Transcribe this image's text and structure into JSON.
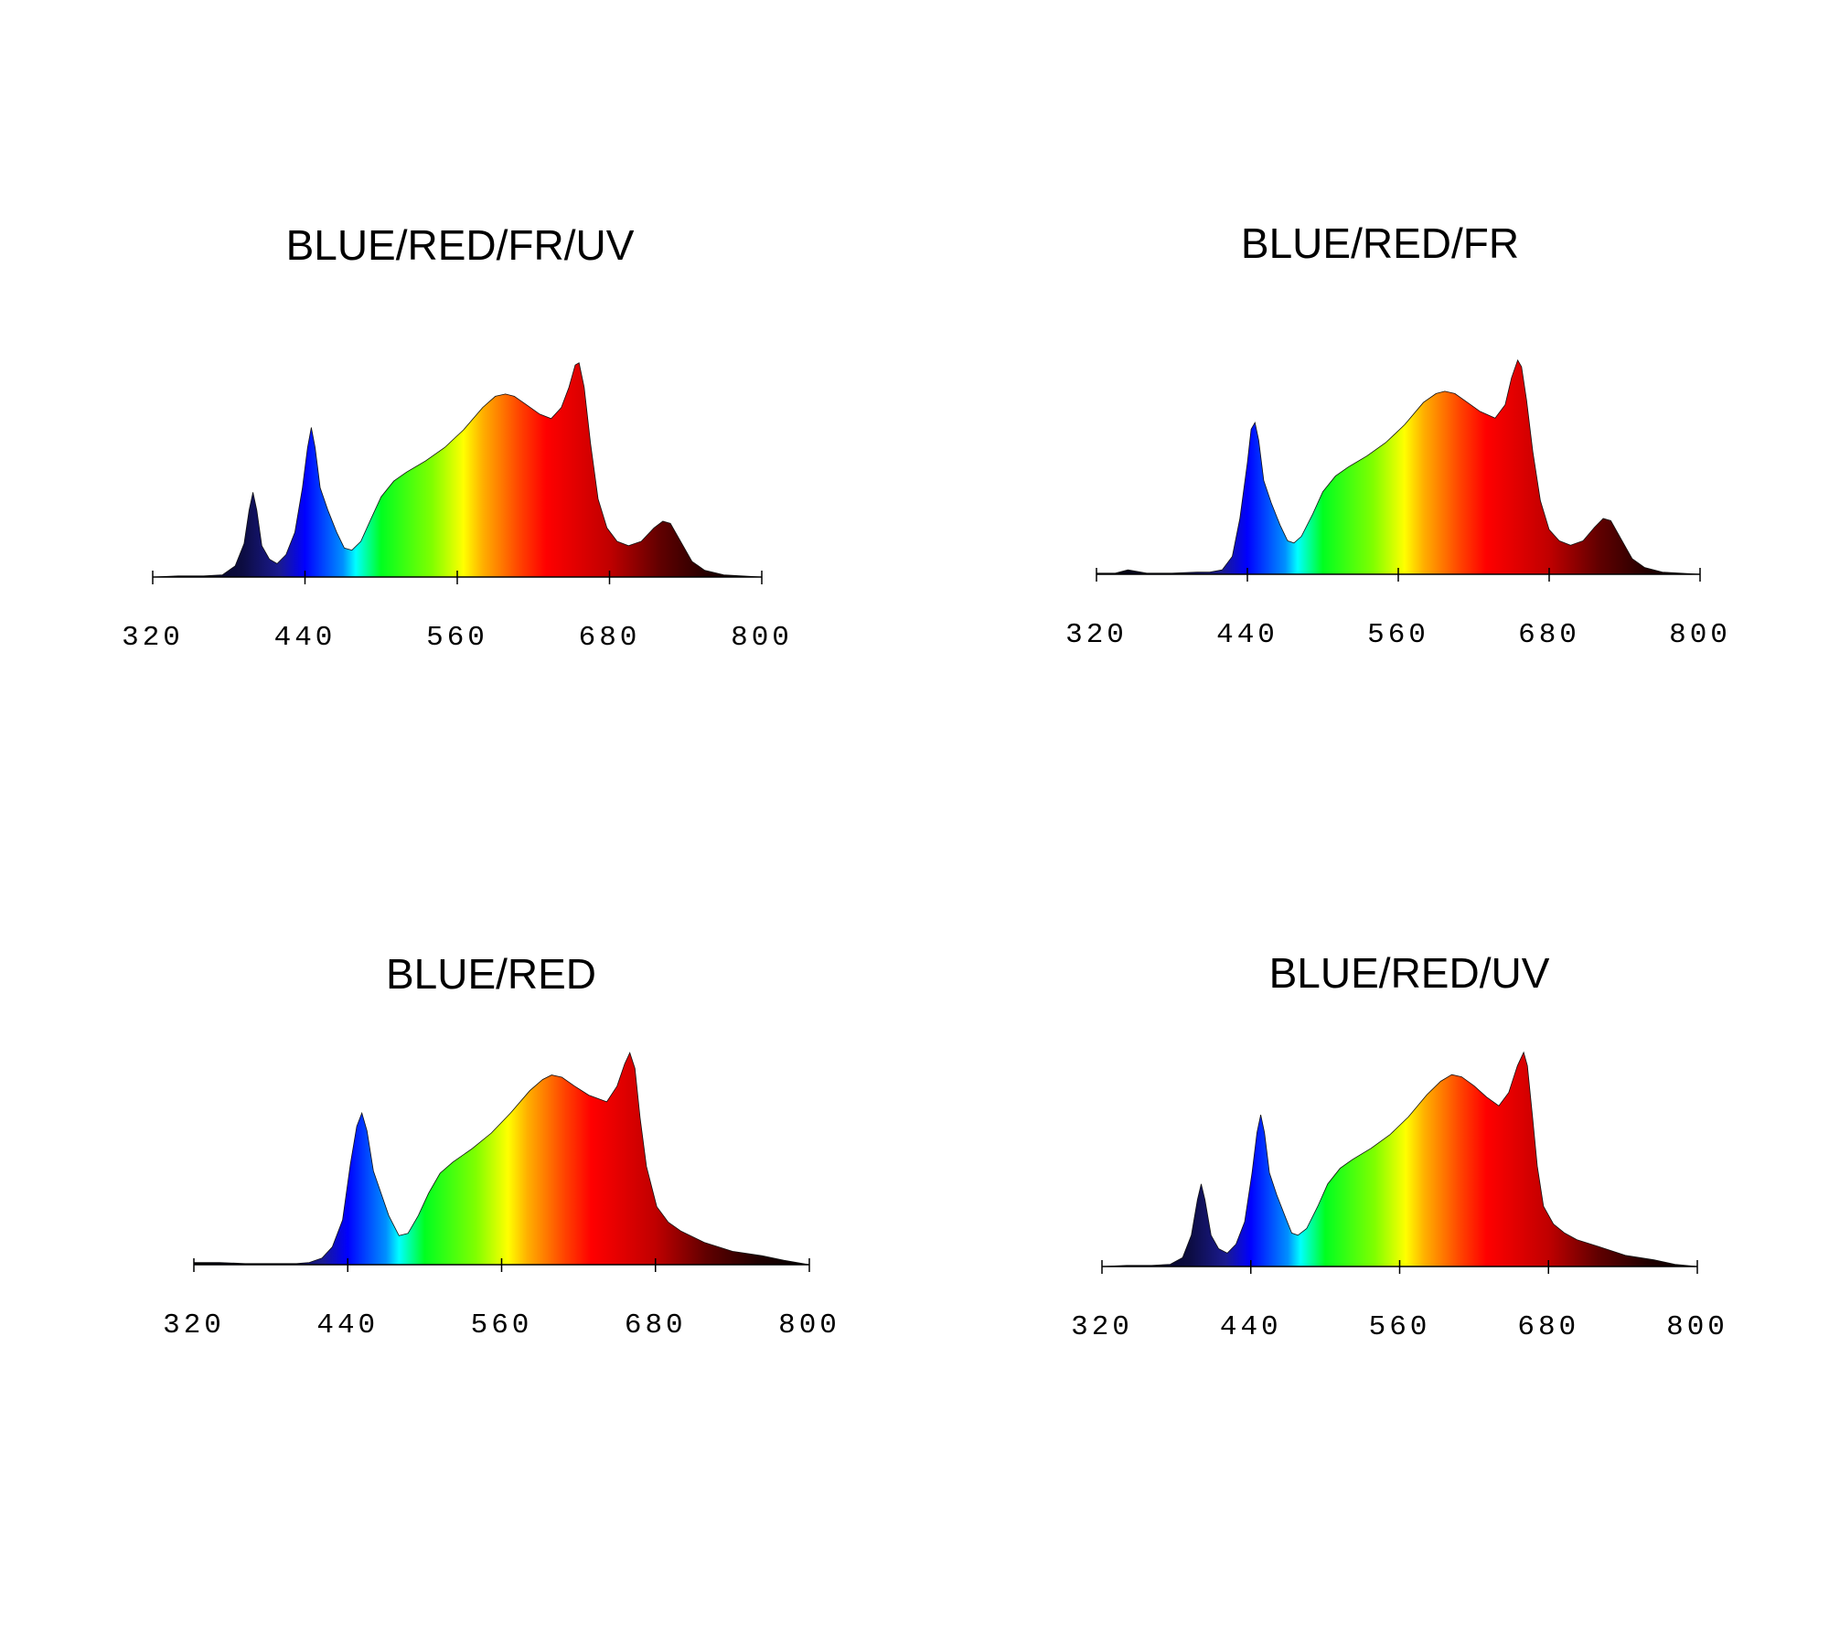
{
  "chart_data": [
    {
      "type": "area",
      "title": "BLUE/RED/FR/UV",
      "x": [
        320,
        340,
        360,
        375,
        385,
        392,
        396,
        399,
        402,
        406,
        412,
        418,
        425,
        432,
        438,
        442,
        445,
        448,
        452,
        458,
        465,
        471,
        477,
        484,
        492,
        500,
        510,
        520,
        535,
        550,
        565,
        580,
        590,
        598,
        605,
        615,
        625,
        634,
        642,
        648,
        653,
        656,
        660,
        665,
        671,
        678,
        686,
        695,
        705,
        715,
        722,
        728,
        735,
        745,
        755,
        770,
        800
      ],
      "values": [
        0,
        0.5,
        0.5,
        1,
        5,
        15,
        30,
        38,
        30,
        14,
        8,
        6,
        10,
        20,
        40,
        58,
        67,
        58,
        40,
        30,
        20,
        13,
        12,
        16,
        26,
        36,
        43,
        47,
        52,
        58,
        66,
        76,
        81,
        82,
        81,
        77,
        73,
        71,
        76,
        85,
        95,
        96,
        85,
        60,
        35,
        22,
        16,
        14,
        16,
        22,
        25,
        24,
        17,
        7,
        3,
        1,
        0
      ],
      "xlim": [
        320,
        800
      ],
      "ylim": [
        0,
        100
      ],
      "xticks": [
        320,
        440,
        560,
        680,
        800
      ],
      "colors": [
        {
          "x": 320,
          "color": "#000000"
        },
        {
          "x": 390,
          "color": "#0c0c40"
        },
        {
          "x": 420,
          "color": "#1a1a90"
        },
        {
          "x": 440,
          "color": "#0000ff"
        },
        {
          "x": 470,
          "color": "#0090ff"
        },
        {
          "x": 480,
          "color": "#00ffff"
        },
        {
          "x": 500,
          "color": "#00ff20"
        },
        {
          "x": 540,
          "color": "#80ff00"
        },
        {
          "x": 565,
          "color": "#ffff00"
        },
        {
          "x": 580,
          "color": "#ffb000"
        },
        {
          "x": 610,
          "color": "#ff4000"
        },
        {
          "x": 630,
          "color": "#ff0000"
        },
        {
          "x": 680,
          "color": "#c00000"
        },
        {
          "x": 720,
          "color": "#600000"
        },
        {
          "x": 760,
          "color": "#200000"
        },
        {
          "x": 800,
          "color": "#000000"
        }
      ]
    },
    {
      "type": "area",
      "title": "BLUE/RED/FR",
      "x": [
        320,
        335,
        345,
        360,
        380,
        400,
        410,
        420,
        428,
        434,
        440,
        443,
        446,
        449,
        453,
        459,
        466,
        472,
        477,
        483,
        492,
        500,
        510,
        520,
        535,
        550,
        565,
        580,
        590,
        597,
        605,
        615,
        625,
        637,
        645,
        650,
        655,
        658,
        662,
        667,
        673,
        680,
        688,
        697,
        707,
        716,
        723,
        729,
        736,
        746,
        756,
        770,
        800
      ],
      "values": [
        0.5,
        0.5,
        2,
        0.5,
        0.5,
        1,
        1,
        2,
        8,
        25,
        50,
        65,
        68,
        60,
        42,
        32,
        22,
        15,
        14,
        17,
        27,
        37,
        44,
        48,
        53,
        59,
        67,
        77,
        81,
        82,
        81,
        77,
        73,
        70,
        76,
        88,
        96,
        93,
        78,
        55,
        33,
        20,
        15,
        13,
        15,
        21,
        25,
        24,
        17,
        7,
        3,
        1,
        0
      ],
      "xlim": [
        320,
        800
      ],
      "ylim": [
        0,
        100
      ],
      "xticks": [
        320,
        440,
        560,
        680,
        800
      ],
      "colors": [
        {
          "x": 320,
          "color": "#000000"
        },
        {
          "x": 390,
          "color": "#0c0c40"
        },
        {
          "x": 420,
          "color": "#1a1a90"
        },
        {
          "x": 440,
          "color": "#0000ff"
        },
        {
          "x": 470,
          "color": "#0090ff"
        },
        {
          "x": 480,
          "color": "#00ffff"
        },
        {
          "x": 500,
          "color": "#00ff20"
        },
        {
          "x": 540,
          "color": "#80ff00"
        },
        {
          "x": 565,
          "color": "#ffff00"
        },
        {
          "x": 580,
          "color": "#ffb000"
        },
        {
          "x": 610,
          "color": "#ff4000"
        },
        {
          "x": 630,
          "color": "#ff0000"
        },
        {
          "x": 680,
          "color": "#c00000"
        },
        {
          "x": 720,
          "color": "#600000"
        },
        {
          "x": 760,
          "color": "#200000"
        },
        {
          "x": 800,
          "color": "#000000"
        }
      ]
    },
    {
      "type": "area",
      "title": "BLUE/RED",
      "x": [
        320,
        340,
        360,
        380,
        400,
        410,
        420,
        428,
        436,
        442,
        447,
        451,
        455,
        460,
        466,
        472,
        480,
        487,
        495,
        503,
        512,
        522,
        537,
        552,
        567,
        582,
        592,
        599,
        607,
        617,
        628,
        642,
        650,
        656,
        660,
        664,
        668,
        673,
        681,
        690,
        700,
        718,
        740,
        763,
        780,
        800
      ],
      "values": [
        1,
        1,
        0.5,
        0.5,
        0.5,
        1,
        3,
        8,
        20,
        45,
        62,
        68,
        60,
        42,
        32,
        22,
        13,
        14,
        22,
        32,
        41,
        46,
        52,
        59,
        68,
        78,
        83,
        85,
        84,
        80,
        76,
        73,
        80,
        90,
        95,
        88,
        66,
        44,
        26,
        19,
        15,
        10,
        6,
        4,
        2,
        0
      ],
      "xlim": [
        320,
        800
      ],
      "ylim": [
        0,
        100
      ],
      "xticks": [
        320,
        440,
        560,
        680,
        800
      ],
      "colors": [
        {
          "x": 320,
          "color": "#000000"
        },
        {
          "x": 390,
          "color": "#0c0c40"
        },
        {
          "x": 420,
          "color": "#1a1a90"
        },
        {
          "x": 440,
          "color": "#0000ff"
        },
        {
          "x": 470,
          "color": "#0090ff"
        },
        {
          "x": 480,
          "color": "#00ffff"
        },
        {
          "x": 500,
          "color": "#00ff20"
        },
        {
          "x": 540,
          "color": "#80ff00"
        },
        {
          "x": 565,
          "color": "#ffff00"
        },
        {
          "x": 580,
          "color": "#ffb000"
        },
        {
          "x": 610,
          "color": "#ff4000"
        },
        {
          "x": 630,
          "color": "#ff0000"
        },
        {
          "x": 680,
          "color": "#c00000"
        },
        {
          "x": 720,
          "color": "#600000"
        },
        {
          "x": 760,
          "color": "#200000"
        },
        {
          "x": 800,
          "color": "#000000"
        }
      ]
    },
    {
      "type": "area",
      "title": "BLUE/RED/UV",
      "x": [
        320,
        340,
        360,
        375,
        385,
        392,
        397,
        400,
        403,
        408,
        414,
        421,
        428,
        435,
        441,
        445,
        448,
        451,
        455,
        461,
        468,
        473,
        478,
        485,
        494,
        502,
        512,
        522,
        537,
        552,
        567,
        582,
        593,
        602,
        610,
        620,
        630,
        640,
        648,
        655,
        660,
        663,
        667,
        671,
        676,
        684,
        693,
        703,
        720,
        742,
        765,
        782,
        800
      ],
      "values": [
        0,
        0.5,
        0.5,
        1,
        4,
        14,
        30,
        37,
        30,
        14,
        8,
        6,
        10,
        20,
        42,
        60,
        68,
        60,
        42,
        32,
        22,
        15,
        14,
        17,
        27,
        37,
        44,
        48,
        53,
        59,
        67,
        77,
        83,
        86,
        85,
        81,
        76,
        72,
        78,
        90,
        96,
        90,
        68,
        45,
        27,
        19,
        15,
        12,
        9,
        5,
        3,
        1,
        0
      ],
      "xlim": [
        320,
        800
      ],
      "ylim": [
        0,
        100
      ],
      "xticks": [
        320,
        440,
        560,
        680,
        800
      ],
      "colors": [
        {
          "x": 320,
          "color": "#000000"
        },
        {
          "x": 390,
          "color": "#0c0c40"
        },
        {
          "x": 420,
          "color": "#1a1a90"
        },
        {
          "x": 440,
          "color": "#0000ff"
        },
        {
          "x": 470,
          "color": "#0090ff"
        },
        {
          "x": 480,
          "color": "#00ffff"
        },
        {
          "x": 500,
          "color": "#00ff20"
        },
        {
          "x": 540,
          "color": "#80ff00"
        },
        {
          "x": 565,
          "color": "#ffff00"
        },
        {
          "x": 580,
          "color": "#ffb000"
        },
        {
          "x": 610,
          "color": "#ff4000"
        },
        {
          "x": 630,
          "color": "#ff0000"
        },
        {
          "x": 680,
          "color": "#c00000"
        },
        {
          "x": 720,
          "color": "#600000"
        },
        {
          "x": 760,
          "color": "#200000"
        },
        {
          "x": 800,
          "color": "#000000"
        }
      ]
    }
  ]
}
